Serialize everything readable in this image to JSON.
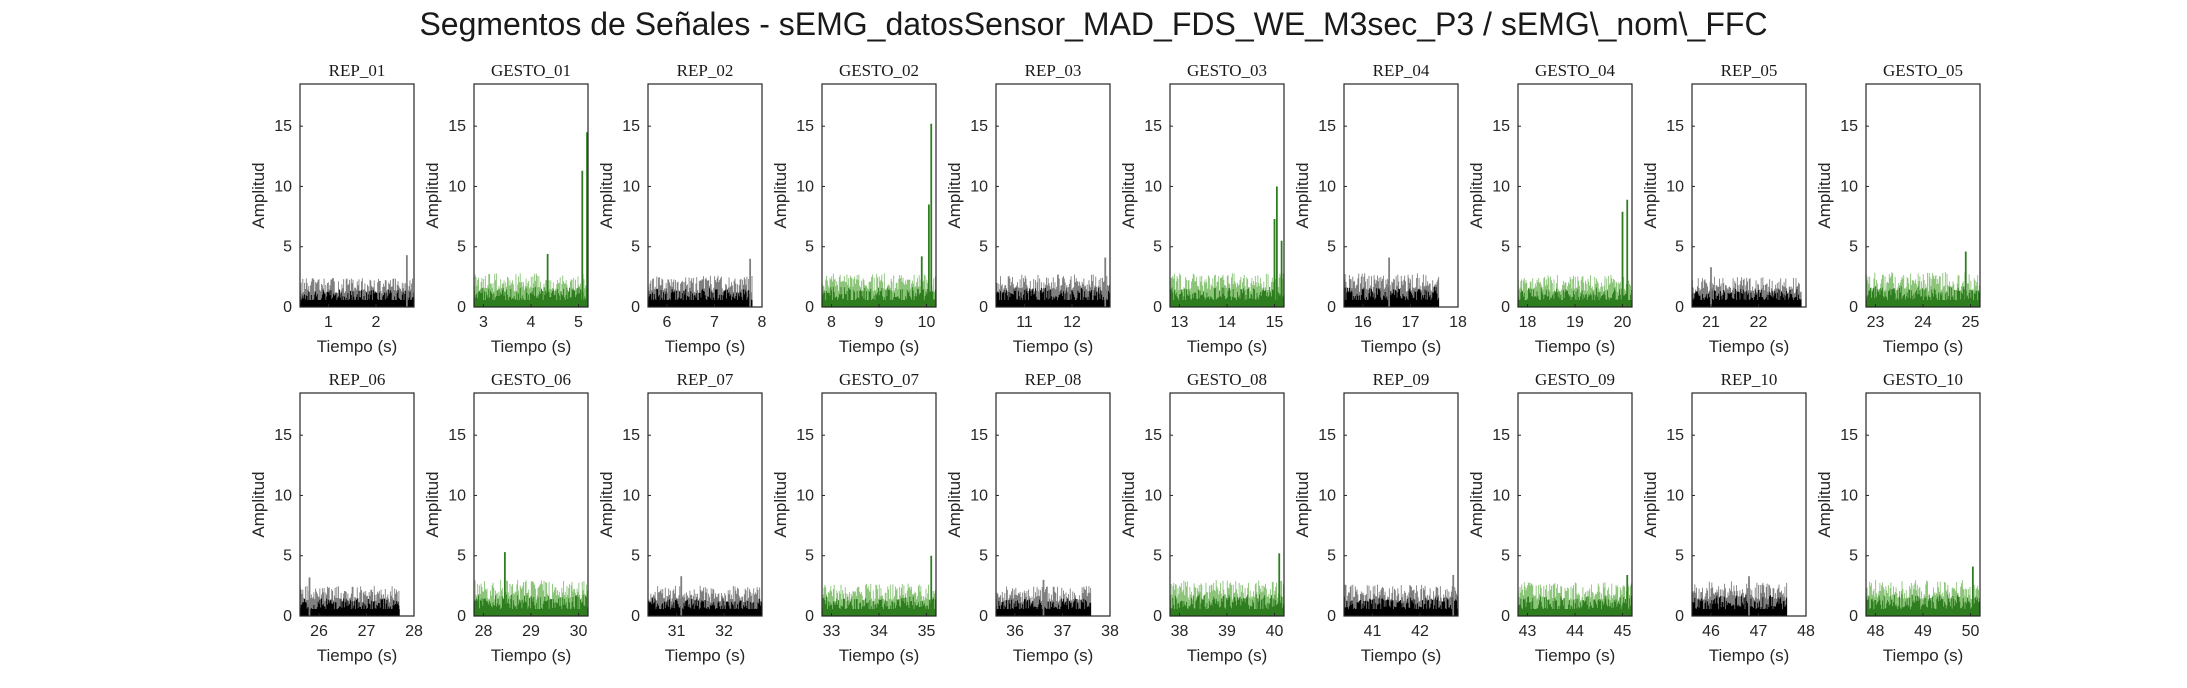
{
  "figure": {
    "title": "Segmentos de Señales - sEMG_datosSensor_MAD_FDS_WE_M3sec_P3 / sEMG\\_nom\\_FFC"
  },
  "colors": {
    "rep_dark": "#000000",
    "rep_light": "#7f7f7f",
    "gesto_dark": "#2e7d1f",
    "gesto_light": "#8cc47a",
    "axis": "#262626"
  },
  "chart_data": [
    {
      "type": "area",
      "title": "REP_01",
      "xlabel": "Tiempo (s)",
      "ylabel": "Amplitud",
      "xlim": [
        0.4,
        2.8
      ],
      "ylim": [
        0,
        18.5
      ],
      "xticks": [
        1,
        2
      ],
      "yticks": [
        0,
        5,
        10,
        15
      ],
      "x_range": [
        0.4,
        2.8
      ],
      "noise_level": 2.4,
      "peaks": [
        {
          "x": 2.65,
          "y": 4.3
        }
      ],
      "color": "rep"
    },
    {
      "type": "area",
      "title": "GESTO_01",
      "xlabel": "Tiempo (s)",
      "ylabel": "Amplitud",
      "xlim": [
        2.8,
        5.2
      ],
      "ylim": [
        0,
        18.5
      ],
      "xticks": [
        3,
        4,
        5
      ],
      "yticks": [
        0,
        5,
        10,
        15
      ],
      "x_range": [
        2.8,
        5.2
      ],
      "noise_level": 2.8,
      "peaks": [
        {
          "x": 4.35,
          "y": 4.4
        },
        {
          "x": 5.08,
          "y": 11.3
        },
        {
          "x": 5.18,
          "y": 14.5
        }
      ],
      "color": "gesto"
    },
    {
      "type": "area",
      "title": "REP_02",
      "xlabel": "Tiempo (s)",
      "ylabel": "Amplitud",
      "xlim": [
        5.6,
        8.0
      ],
      "ylim": [
        0,
        18.5
      ],
      "xticks": [
        6,
        7,
        8
      ],
      "yticks": [
        0,
        5,
        10,
        15
      ],
      "x_range": [
        5.6,
        7.8
      ],
      "noise_level": 2.6,
      "peaks": [
        {
          "x": 7.75,
          "y": 4.0
        }
      ],
      "color": "rep"
    },
    {
      "type": "area",
      "title": "GESTO_02",
      "xlabel": "Tiempo (s)",
      "ylabel": "Amplitud",
      "xlim": [
        7.8,
        10.2
      ],
      "ylim": [
        0,
        18.5
      ],
      "xticks": [
        8,
        9,
        10
      ],
      "yticks": [
        0,
        5,
        10,
        15
      ],
      "x_range": [
        7.8,
        10.2
      ],
      "noise_level": 2.8,
      "peaks": [
        {
          "x": 9.9,
          "y": 4.2
        },
        {
          "x": 10.05,
          "y": 8.5
        },
        {
          "x": 10.1,
          "y": 15.2
        }
      ],
      "color": "gesto"
    },
    {
      "type": "area",
      "title": "REP_03",
      "xlabel": "Tiempo (s)",
      "ylabel": "Amplitud",
      "xlim": [
        10.4,
        12.8
      ],
      "ylim": [
        0,
        18.5
      ],
      "xticks": [
        11,
        12
      ],
      "yticks": [
        0,
        5,
        10,
        15
      ],
      "x_range": [
        10.4,
        12.8
      ],
      "noise_level": 2.7,
      "peaks": [
        {
          "x": 12.7,
          "y": 4.1
        }
      ],
      "color": "rep"
    },
    {
      "type": "area",
      "title": "GESTO_03",
      "xlabel": "Tiempo (s)",
      "ylabel": "Amplitud",
      "xlim": [
        12.8,
        15.2
      ],
      "ylim": [
        0,
        18.5
      ],
      "xticks": [
        13,
        14,
        15
      ],
      "yticks": [
        0,
        5,
        10,
        15
      ],
      "x_range": [
        12.8,
        15.2
      ],
      "noise_level": 2.8,
      "peaks": [
        {
          "x": 15.0,
          "y": 7.3
        },
        {
          "x": 15.05,
          "y": 10.0
        },
        {
          "x": 15.15,
          "y": 5.5
        }
      ],
      "color": "gesto"
    },
    {
      "type": "area",
      "title": "REP_04",
      "xlabel": "Tiempo (s)",
      "ylabel": "Amplitud",
      "xlim": [
        15.6,
        18.0
      ],
      "ylim": [
        0,
        18.5
      ],
      "xticks": [
        16,
        17,
        18
      ],
      "yticks": [
        0,
        5,
        10,
        15
      ],
      "x_range": [
        15.6,
        17.6
      ],
      "noise_level": 2.8,
      "peaks": [
        {
          "x": 16.55,
          "y": 4.1
        }
      ],
      "color": "rep"
    },
    {
      "type": "area",
      "title": "GESTO_04",
      "xlabel": "Tiempo (s)",
      "ylabel": "Amplitud",
      "xlim": [
        17.8,
        20.2
      ],
      "ylim": [
        0,
        18.5
      ],
      "xticks": [
        18,
        19,
        20
      ],
      "yticks": [
        0,
        5,
        10,
        15
      ],
      "x_range": [
        17.8,
        20.2
      ],
      "noise_level": 2.7,
      "peaks": [
        {
          "x": 20.0,
          "y": 7.9
        },
        {
          "x": 20.1,
          "y": 8.9
        }
      ],
      "color": "gesto"
    },
    {
      "type": "area",
      "title": "REP_05",
      "xlabel": "Tiempo (s)",
      "ylabel": "Amplitud",
      "xlim": [
        20.6,
        23.0
      ],
      "ylim": [
        0,
        18.5
      ],
      "xticks": [
        21,
        22
      ],
      "yticks": [
        0,
        5,
        10,
        15
      ],
      "x_range": [
        20.6,
        22.9
      ],
      "noise_level": 2.5,
      "peaks": [
        {
          "x": 21.0,
          "y": 3.3
        }
      ],
      "color": "rep"
    },
    {
      "type": "area",
      "title": "GESTO_05",
      "xlabel": "Tiempo (s)",
      "ylabel": "Amplitud",
      "xlim": [
        22.8,
        25.2
      ],
      "ylim": [
        0,
        18.5
      ],
      "xticks": [
        23,
        24,
        25
      ],
      "yticks": [
        0,
        5,
        10,
        15
      ],
      "x_range": [
        22.8,
        25.2
      ],
      "noise_level": 2.9,
      "peaks": [
        {
          "x": 24.9,
          "y": 4.6
        }
      ],
      "color": "gesto"
    },
    {
      "type": "area",
      "title": "REP_06",
      "xlabel": "Tiempo (s)",
      "ylabel": "Amplitud",
      "xlim": [
        25.6,
        28.0
      ],
      "ylim": [
        0,
        18.5
      ],
      "xticks": [
        26,
        27,
        28
      ],
      "yticks": [
        0,
        5,
        10,
        15
      ],
      "x_range": [
        25.6,
        27.7
      ],
      "noise_level": 2.5,
      "peaks": [
        {
          "x": 25.8,
          "y": 3.2
        }
      ],
      "color": "rep"
    },
    {
      "type": "area",
      "title": "GESTO_06",
      "xlabel": "Tiempo (s)",
      "ylabel": "Amplitud",
      "xlim": [
        27.8,
        30.2
      ],
      "ylim": [
        0,
        18.5
      ],
      "xticks": [
        28,
        29,
        30
      ],
      "yticks": [
        0,
        5,
        10,
        15
      ],
      "x_range": [
        27.8,
        30.2
      ],
      "noise_level": 3.0,
      "peaks": [
        {
          "x": 28.45,
          "y": 5.3
        }
      ],
      "color": "gesto"
    },
    {
      "type": "area",
      "title": "REP_07",
      "xlabel": "Tiempo (s)",
      "ylabel": "Amplitud",
      "xlim": [
        30.4,
        32.8
      ],
      "ylim": [
        0,
        18.5
      ],
      "xticks": [
        31,
        32
      ],
      "yticks": [
        0,
        5,
        10,
        15
      ],
      "x_range": [
        30.4,
        32.8
      ],
      "noise_level": 2.5,
      "peaks": [
        {
          "x": 31.1,
          "y": 3.3
        }
      ],
      "color": "rep"
    },
    {
      "type": "area",
      "title": "GESTO_07",
      "xlabel": "Tiempo (s)",
      "ylabel": "Amplitud",
      "xlim": [
        32.8,
        35.2
      ],
      "ylim": [
        0,
        18.5
      ],
      "xticks": [
        33,
        34,
        35
      ],
      "yticks": [
        0,
        5,
        10,
        15
      ],
      "x_range": [
        32.8,
        35.2
      ],
      "noise_level": 2.7,
      "peaks": [
        {
          "x": 35.1,
          "y": 5.0
        }
      ],
      "color": "gesto"
    },
    {
      "type": "area",
      "title": "REP_08",
      "xlabel": "Tiempo (s)",
      "ylabel": "Amplitud",
      "xlim": [
        35.6,
        38.0
      ],
      "ylim": [
        0,
        18.5
      ],
      "xticks": [
        36,
        37,
        38
      ],
      "yticks": [
        0,
        5,
        10,
        15
      ],
      "x_range": [
        35.6,
        37.6
      ],
      "noise_level": 2.5,
      "peaks": [
        {
          "x": 36.6,
          "y": 3.0
        }
      ],
      "color": "rep"
    },
    {
      "type": "area",
      "title": "GESTO_08",
      "xlabel": "Tiempo (s)",
      "ylabel": "Amplitud",
      "xlim": [
        37.8,
        40.2
      ],
      "ylim": [
        0,
        18.5
      ],
      "xticks": [
        38,
        39,
        40
      ],
      "yticks": [
        0,
        5,
        10,
        15
      ],
      "x_range": [
        37.8,
        40.2
      ],
      "noise_level": 3.0,
      "peaks": [
        {
          "x": 40.1,
          "y": 5.2
        }
      ],
      "color": "gesto"
    },
    {
      "type": "area",
      "title": "REP_09",
      "xlabel": "Tiempo (s)",
      "ylabel": "Amplitud",
      "xlim": [
        40.4,
        42.8
      ],
      "ylim": [
        0,
        18.5
      ],
      "xticks": [
        41,
        42
      ],
      "yticks": [
        0,
        5,
        10,
        15
      ],
      "x_range": [
        40.4,
        42.8
      ],
      "noise_level": 2.6,
      "peaks": [
        {
          "x": 42.7,
          "y": 3.4
        }
      ],
      "color": "rep"
    },
    {
      "type": "area",
      "title": "GESTO_09",
      "xlabel": "Tiempo (s)",
      "ylabel": "Amplitud",
      "xlim": [
        42.8,
        45.2
      ],
      "ylim": [
        0,
        18.5
      ],
      "xticks": [
        43,
        44,
        45
      ],
      "yticks": [
        0,
        5,
        10,
        15
      ],
      "x_range": [
        42.8,
        45.2
      ],
      "noise_level": 2.8,
      "peaks": [
        {
          "x": 45.1,
          "y": 3.4
        }
      ],
      "color": "gesto"
    },
    {
      "type": "area",
      "title": "REP_10",
      "xlabel": "Tiempo (s)",
      "ylabel": "Amplitud",
      "xlim": [
        45.6,
        48.0
      ],
      "ylim": [
        0,
        18.5
      ],
      "xticks": [
        46,
        47,
        48
      ],
      "yticks": [
        0,
        5,
        10,
        15
      ],
      "x_range": [
        45.6,
        47.6
      ],
      "noise_level": 2.9,
      "peaks": [
        {
          "x": 46.8,
          "y": 3.3
        }
      ],
      "color": "rep"
    },
    {
      "type": "area",
      "title": "GESTO_10",
      "xlabel": "Tiempo (s)",
      "ylabel": "Amplitud",
      "xlim": [
        47.8,
        50.2
      ],
      "ylim": [
        0,
        18.5
      ],
      "xticks": [
        48,
        49,
        50
      ],
      "yticks": [
        0,
        5,
        10,
        15
      ],
      "x_range": [
        47.8,
        50.2
      ],
      "noise_level": 3.0,
      "peaks": [
        {
          "x": 50.05,
          "y": 4.1
        }
      ],
      "color": "gesto"
    }
  ]
}
